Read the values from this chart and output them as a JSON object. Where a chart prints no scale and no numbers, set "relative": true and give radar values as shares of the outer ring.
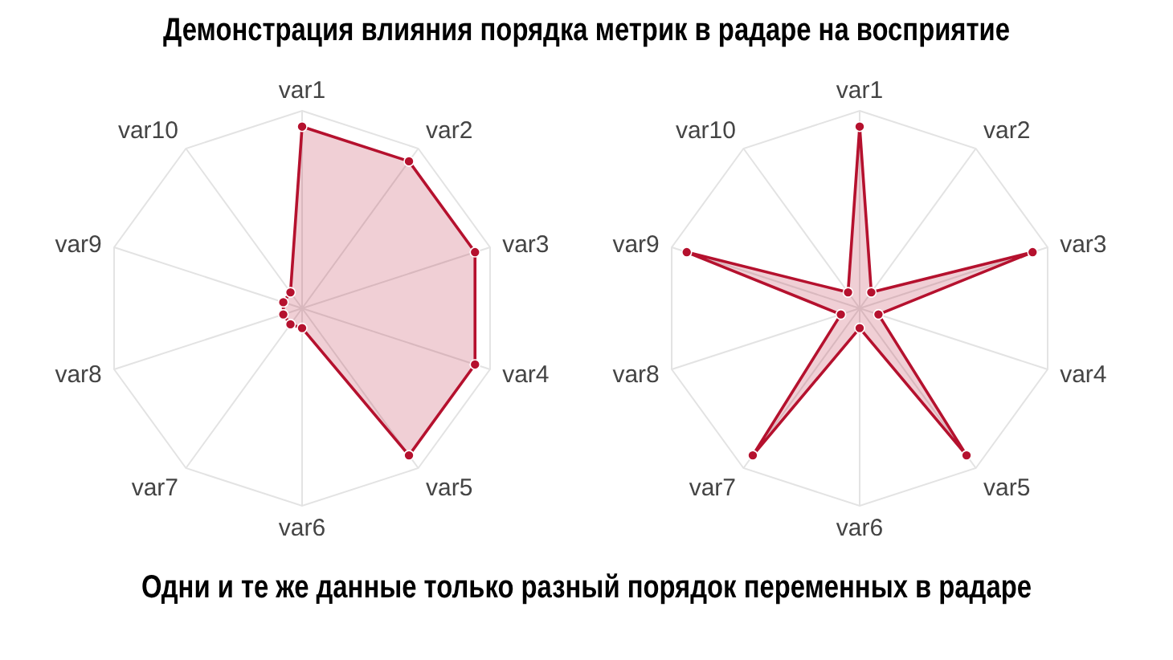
{
  "chart_data": [
    {
      "type": "radar",
      "title": "Демонстрация влияния порядка метрик в радаре на восприятие",
      "annotations": [
        "Одни и те же данные только разный порядок переменных в радаре"
      ],
      "categories": [
        "var1",
        "var2",
        "var3",
        "var4",
        "var5",
        "var6",
        "var7",
        "var8",
        "var9",
        "var10"
      ],
      "relative": true,
      "grid": true,
      "marker": "circle",
      "series": [
        {
          "color": "#b5112e",
          "values": [
            0.92,
            0.92,
            0.92,
            0.92,
            0.92,
            0.1,
            0.1,
            0.1,
            0.1,
            0.1
          ]
        }
      ]
    },
    {
      "type": "radar",
      "categories": [
        "var1",
        "var2",
        "var3",
        "var4",
        "var5",
        "var6",
        "var7",
        "var8",
        "var9",
        "var10"
      ],
      "relative": true,
      "grid": true,
      "marker": "circle",
      "series": [
        {
          "color": "#b5112e",
          "values": [
            0.92,
            0.1,
            0.92,
            0.1,
            0.92,
            0.1,
            0.92,
            0.1,
            0.92,
            0.1
          ]
        }
      ]
    }
  ]
}
